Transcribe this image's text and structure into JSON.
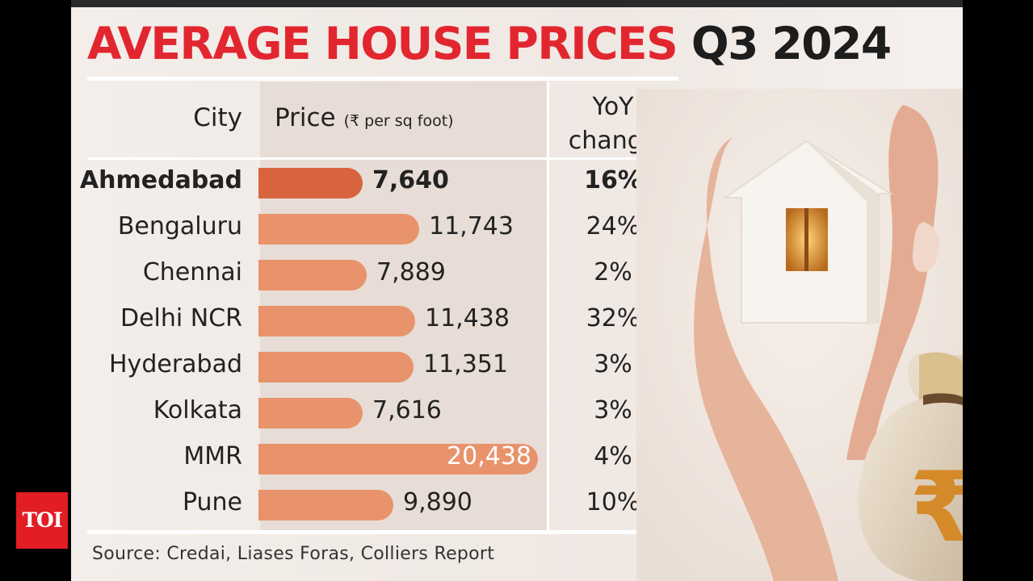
{
  "title": {
    "red": "AVERAGE HOUSE PRICES",
    "dark": "Q3 2024"
  },
  "headers": {
    "city": "City",
    "price": "Price",
    "unit": "(₹ per sq foot)",
    "yoy": "YoY change"
  },
  "chart_data": {
    "type": "bar",
    "title": "AVERAGE HOUSE PRICES Q3 2024",
    "xlabel": "City",
    "ylabel": "Price (₹ per sq foot)",
    "categories": [
      "Ahmedabad",
      "Bengaluru",
      "Chennai",
      "Delhi NCR",
      "Hyderabad",
      "Kolkata",
      "MMR",
      "Pune"
    ],
    "values": [
      7640,
      11743,
      7889,
      11438,
      11351,
      7616,
      20438,
      9890
    ],
    "labels": [
      "7,640",
      "11,743",
      "7,889",
      "11,438",
      "11,351",
      "7,616",
      "20,438",
      "9,890"
    ],
    "yoy_change": [
      "16%",
      "24%",
      "2%",
      "32%",
      "3%",
      "3%",
      "4%",
      "10%"
    ],
    "highlight": "Ahmedabad",
    "colors": {
      "bar": "#e8936c",
      "highlight": "#d8643e"
    }
  },
  "source": "Source: Credai, Liases Foras, Colliers Report",
  "brand": {
    "logo": "TOI",
    "color": "#e21d24"
  },
  "illustration": {
    "icons": [
      "hands-icon",
      "house-icon",
      "money-bag-icon",
      "rupee-icon"
    ]
  }
}
